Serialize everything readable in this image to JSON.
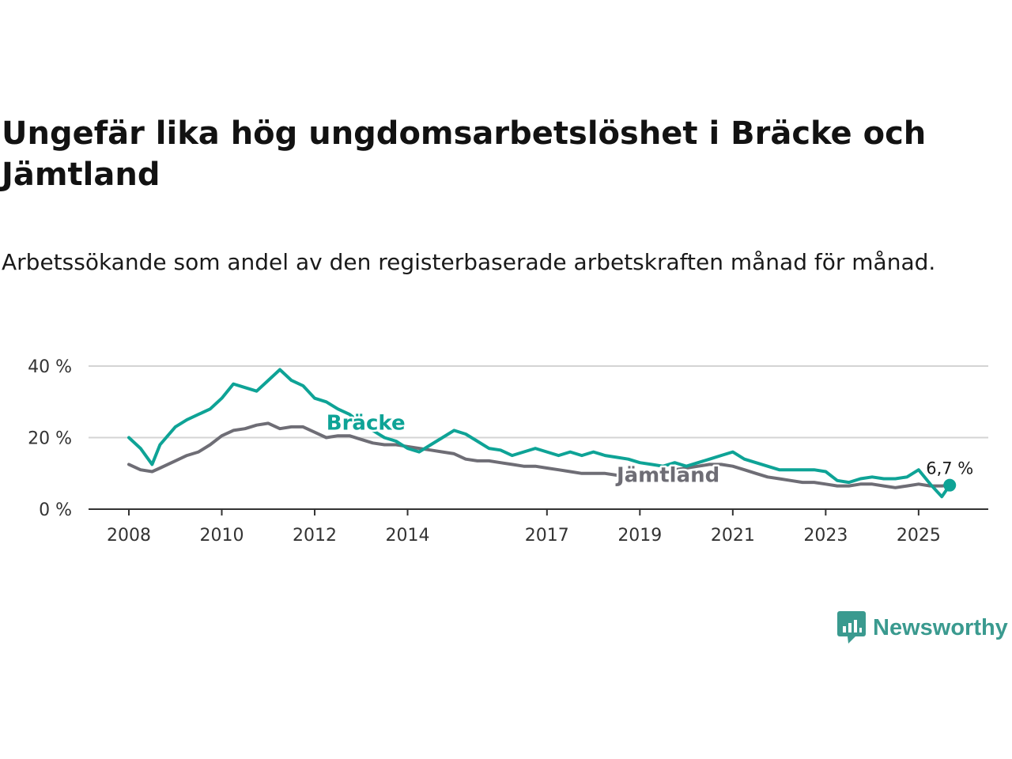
{
  "title": "Ungefär lika hög ungdomsarbetslöshet i Bräcke och Jämtland",
  "subtitle": "Arbetssökande som andel av den registerbaserade arbetskraften månad för månad.",
  "brand": {
    "name": "Newsworthy",
    "icon": "newsworthy-logo-icon",
    "color": "#3a9a8f"
  },
  "colors": {
    "bracke": "#0ea396",
    "jamtland": "#6e6d75",
    "grid": "#d4d4d4",
    "axis": "#333333"
  },
  "chart_data": {
    "type": "line",
    "title": "Ungefär lika hög ungdomsarbetslöshet i Bräcke och Jämtland",
    "xlabel": "",
    "ylabel": "",
    "xlim": [
      2008.0,
      2026.5
    ],
    "ylim": [
      0,
      40
    ],
    "y_ticks": [
      0,
      20,
      40
    ],
    "y_tick_labels": [
      "0 %",
      "20 %",
      "40 %"
    ],
    "x_ticks": [
      2008,
      2010,
      2012,
      2014,
      2017,
      2019,
      2021,
      2023,
      2025
    ],
    "x_tick_labels": [
      "2008",
      "2010",
      "2012",
      "2014",
      "2017",
      "2019",
      "2021",
      "2023",
      "2025"
    ],
    "grid": true,
    "end_label": "6,7 %",
    "series": [
      {
        "name": "Bräcke",
        "label": "Bräcke",
        "x": [
          2008.0,
          2008.25,
          2008.5,
          2008.67,
          2009.0,
          2009.25,
          2009.5,
          2009.75,
          2010.0,
          2010.25,
          2010.5,
          2010.75,
          2011.0,
          2011.25,
          2011.5,
          2011.75,
          2012.0,
          2012.25,
          2012.5,
          2012.75,
          2013.0,
          2013.25,
          2013.5,
          2013.75,
          2014.0,
          2014.25,
          2014.5,
          2014.75,
          2015.0,
          2015.25,
          2015.5,
          2015.75,
          2016.0,
          2016.25,
          2016.5,
          2016.75,
          2017.0,
          2017.25,
          2017.5,
          2017.75,
          2018.0,
          2018.25,
          2018.5,
          2018.75,
          2019.0,
          2019.25,
          2019.5,
          2019.75,
          2020.0,
          2020.25,
          2020.5,
          2020.75,
          2021.0,
          2021.25,
          2021.5,
          2021.75,
          2022.0,
          2022.25,
          2022.5,
          2022.75,
          2023.0,
          2023.25,
          2023.5,
          2023.75,
          2024.0,
          2024.25,
          2024.5,
          2024.75,
          2025.0,
          2025.25,
          2025.5,
          2025.67
        ],
        "values": [
          20,
          17,
          12.5,
          18,
          23,
          25,
          26.5,
          28,
          31,
          35,
          34,
          33,
          36,
          39,
          36,
          34.5,
          31,
          30,
          28,
          26.5,
          24,
          22,
          20,
          19,
          17,
          16,
          18,
          20,
          22,
          21,
          19,
          17,
          16.5,
          15,
          16,
          17,
          16,
          15,
          16,
          15,
          16,
          15,
          14.5,
          14,
          13,
          12.5,
          12,
          13,
          12,
          13,
          14,
          15,
          16,
          14,
          13,
          12,
          11,
          11,
          11,
          11,
          10.5,
          8,
          7.5,
          8.5,
          9,
          8.5,
          8.5,
          9,
          11,
          7,
          3.5,
          6.7
        ]
      },
      {
        "name": "Jämtland",
        "label": "Jämtland",
        "x": [
          2008.0,
          2008.25,
          2008.5,
          2008.67,
          2009.0,
          2009.25,
          2009.5,
          2009.75,
          2010.0,
          2010.25,
          2010.5,
          2010.75,
          2011.0,
          2011.25,
          2011.5,
          2011.75,
          2012.0,
          2012.25,
          2012.5,
          2012.75,
          2013.0,
          2013.25,
          2013.5,
          2013.75,
          2014.0,
          2014.25,
          2014.5,
          2014.75,
          2015.0,
          2015.25,
          2015.5,
          2015.75,
          2016.0,
          2016.25,
          2016.5,
          2016.75,
          2017.0,
          2017.25,
          2017.5,
          2017.75,
          2018.0,
          2018.25,
          2018.5,
          2018.75,
          2019.0,
          2019.25,
          2019.5,
          2019.75,
          2020.0,
          2020.25,
          2020.5,
          2020.75,
          2021.0,
          2021.25,
          2021.5,
          2021.75,
          2022.0,
          2022.25,
          2022.5,
          2022.75,
          2023.0,
          2023.25,
          2023.5,
          2023.75,
          2024.0,
          2024.25,
          2024.5,
          2024.75,
          2025.0,
          2025.25,
          2025.5,
          2025.67
        ],
        "values": [
          12.5,
          11,
          10.5,
          11.5,
          13.5,
          15,
          16,
          18,
          20.5,
          22,
          22.5,
          23.5,
          24,
          22.5,
          23,
          23,
          21.5,
          20,
          20.5,
          20.5,
          19.5,
          18.5,
          18,
          18,
          17.5,
          17,
          16.5,
          16,
          15.5,
          14,
          13.5,
          13.5,
          13,
          12.5,
          12,
          12,
          11.5,
          11,
          10.5,
          10,
          10,
          10,
          9.5,
          9,
          9,
          10,
          10.5,
          11,
          11.5,
          12,
          12.5,
          12.5,
          12,
          11,
          10,
          9,
          8.5,
          8,
          7.5,
          7.5,
          7,
          6.5,
          6.5,
          7,
          7,
          6.5,
          6,
          6.5,
          7,
          6.5,
          6.5,
          6.7
        ]
      }
    ]
  }
}
